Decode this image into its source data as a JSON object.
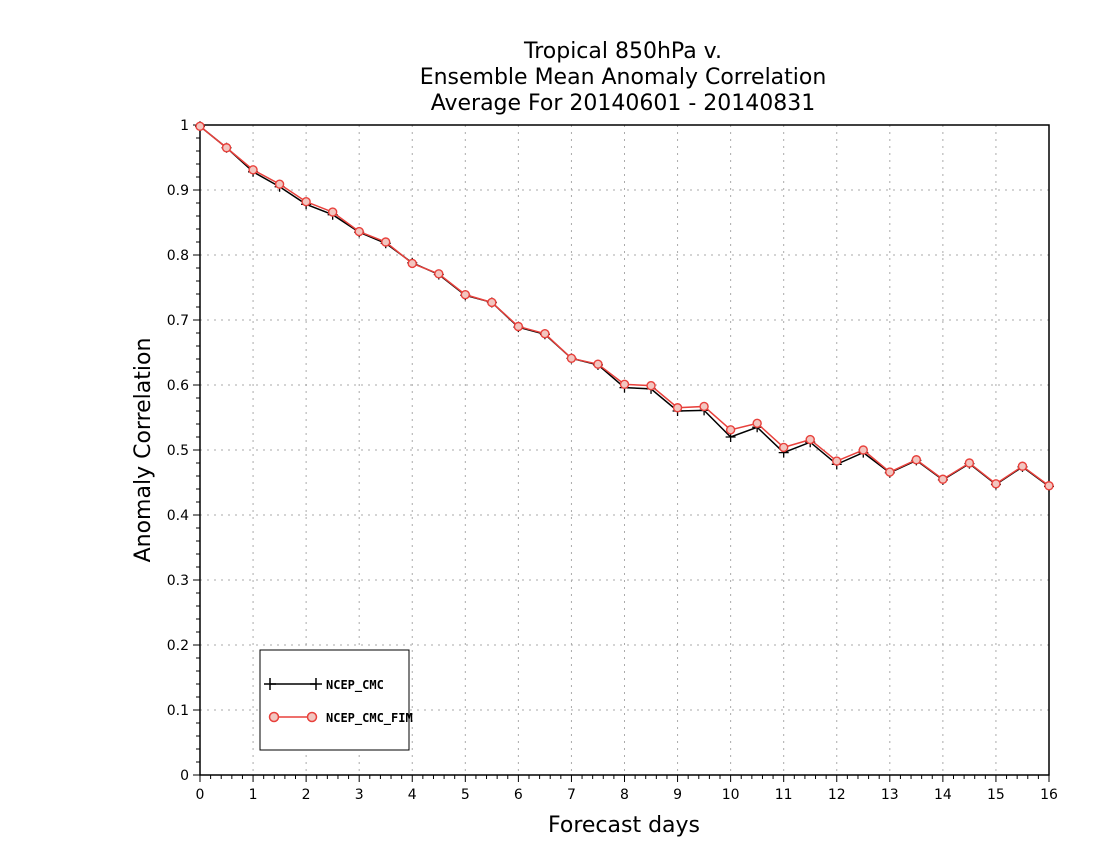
{
  "chart_data": {
    "type": "line",
    "title_lines": [
      "Tropical 850hPa v.",
      "Ensemble Mean Anomaly Correlation",
      "Average For 20140601 - 20140831"
    ],
    "xlabel": "Forecast days",
    "ylabel": "Anomaly Correlation",
    "xlim": [
      0,
      16
    ],
    "ylim": [
      0,
      1
    ],
    "x_ticks": [
      0,
      1,
      2,
      3,
      4,
      5,
      6,
      7,
      8,
      9,
      10,
      11,
      12,
      13,
      14,
      15,
      16
    ],
    "y_ticks": [
      0,
      0.1,
      0.2,
      0.3,
      0.4,
      0.5,
      0.6,
      0.7,
      0.8,
      0.9,
      1
    ],
    "x_tick_labels": [
      "0",
      "1",
      "2",
      "3",
      "4",
      "5",
      "6",
      "7",
      "8",
      "9",
      "10",
      "11",
      "12",
      "13",
      "14",
      "15",
      "16"
    ],
    "y_tick_labels": [
      "0",
      "0.1",
      "0.2",
      "0.3",
      "0.4",
      "0.5",
      "0.6",
      "0.7",
      "0.8",
      "0.9",
      "1"
    ],
    "grid": true,
    "legend_position": "bottom-left",
    "x": [
      0,
      0.5,
      1,
      1.5,
      2,
      2.5,
      3,
      3.5,
      4,
      4.5,
      5,
      5.5,
      6,
      6.5,
      7,
      7.5,
      8,
      8.5,
      9,
      9.5,
      10,
      10.5,
      11,
      11.5,
      12,
      12.5,
      13,
      13.5,
      14,
      14.5,
      15,
      15.5,
      16
    ],
    "series": [
      {
        "name": "NCEP_CMC",
        "color": "#000000",
        "marker": "plus",
        "values": [
          0.998,
          0.965,
          0.928,
          0.905,
          0.878,
          0.862,
          0.835,
          0.818,
          0.788,
          0.77,
          0.738,
          0.727,
          0.689,
          0.678,
          0.641,
          0.631,
          0.596,
          0.594,
          0.56,
          0.561,
          0.52,
          0.535,
          0.496,
          0.512,
          0.478,
          0.496,
          0.465,
          0.484,
          0.454,
          0.479,
          0.447,
          0.474,
          0.444
        ]
      },
      {
        "name": "NCEP_CMC_FIM",
        "color": "#e8413c",
        "marker": "circle",
        "values": [
          0.998,
          0.965,
          0.931,
          0.909,
          0.882,
          0.866,
          0.836,
          0.82,
          0.787,
          0.771,
          0.739,
          0.727,
          0.69,
          0.679,
          0.641,
          0.632,
          0.601,
          0.599,
          0.565,
          0.567,
          0.531,
          0.541,
          0.504,
          0.516,
          0.483,
          0.5,
          0.466,
          0.485,
          0.455,
          0.48,
          0.448,
          0.475,
          0.445
        ]
      }
    ]
  }
}
